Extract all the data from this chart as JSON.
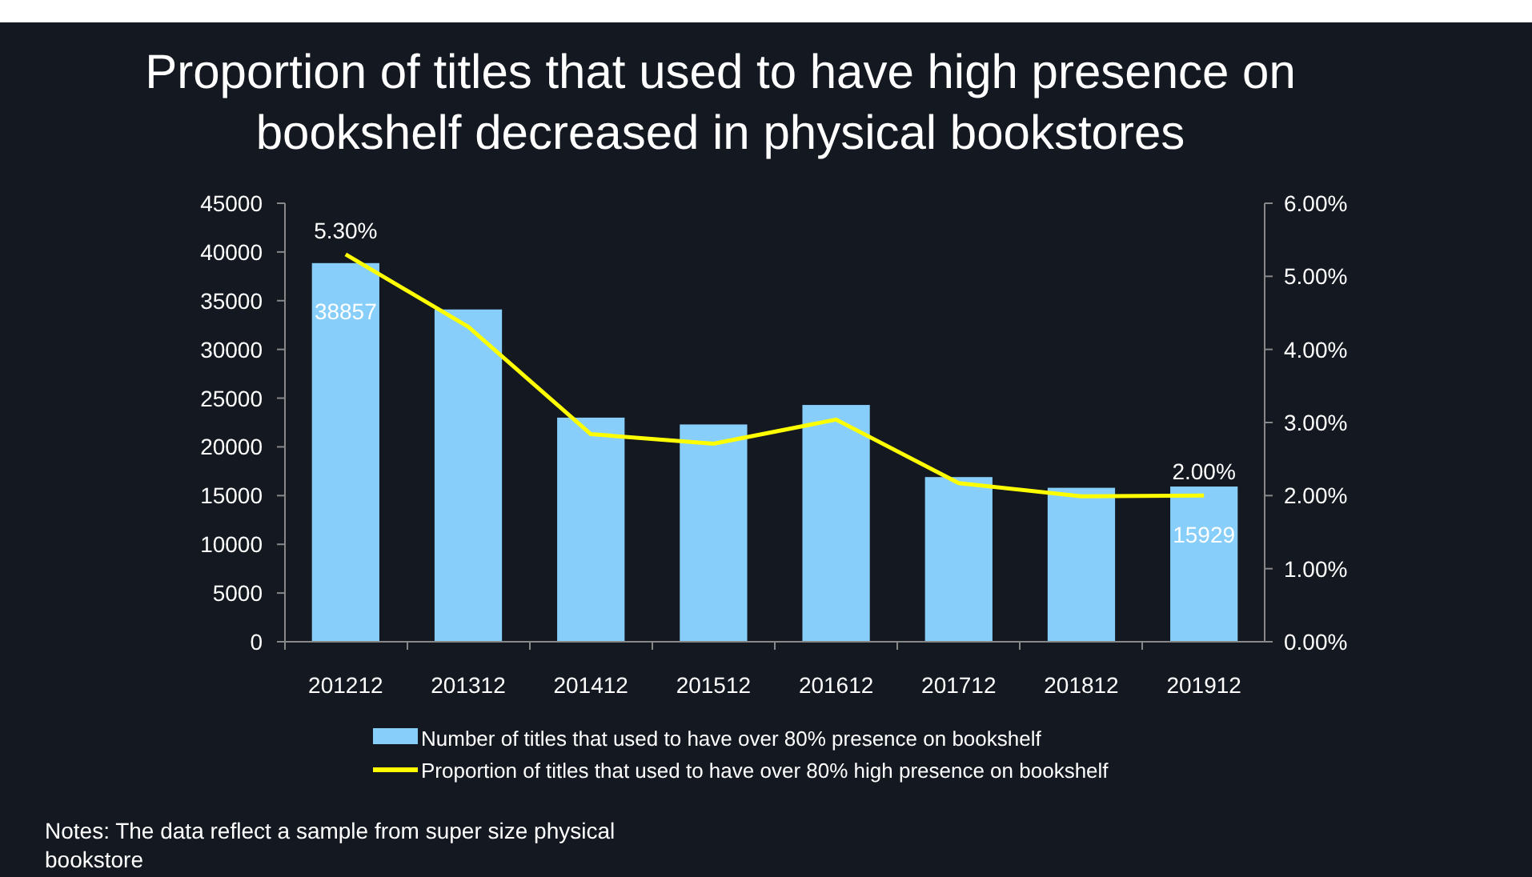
{
  "chart_data": {
    "type": "bar",
    "title": "Proportion of titles that used to have high presence on bookshelf decreased in physical bookstores",
    "categories": [
      "201212",
      "201312",
      "201412",
      "201512",
      "201612",
      "201712",
      "201812",
      "201912"
    ],
    "series": [
      {
        "name": "Number of titles that used to have over 80% presence on bookshelf",
        "color": "#87cefa",
        "values": [
          38857,
          34100,
          23000,
          22300,
          24300,
          16900,
          15800,
          15929
        ],
        "value_labels": [
          "38857",
          null,
          null,
          null,
          null,
          null,
          null,
          "15929"
        ]
      },
      {
        "name": "Proportion of titles that used to have over 80% high presence on bookshelf",
        "type": "line",
        "axis": "y2",
        "color": "#ffff00",
        "values": [
          5.3,
          4.31,
          2.84,
          2.71,
          3.04,
          2.17,
          1.99,
          2.0
        ],
        "value_labels": [
          "5.30%",
          null,
          null,
          null,
          null,
          null,
          null,
          "2.00%"
        ]
      }
    ],
    "ylim": [
      0,
      45000
    ],
    "yticks": [
      0,
      5000,
      10000,
      15000,
      20000,
      25000,
      30000,
      35000,
      40000,
      45000
    ],
    "y2lim": [
      0,
      6
    ],
    "y2ticks": [
      {
        "value": 0,
        "label": "0.00%"
      },
      {
        "value": 1,
        "label": "1.00%"
      },
      {
        "value": 2,
        "label": "2.00%"
      },
      {
        "value": 3,
        "label": "3.00%"
      },
      {
        "value": 4,
        "label": "4.00%"
      },
      {
        "value": 5,
        "label": "5.00%"
      },
      {
        "value": 6,
        "label": "6.00%"
      }
    ],
    "grid": false,
    "legend": "bottom",
    "marker": "none",
    "line_style": "solid",
    "annotations": [
      "Notes: The data reflect a sample from super size physical bookstore"
    ]
  }
}
